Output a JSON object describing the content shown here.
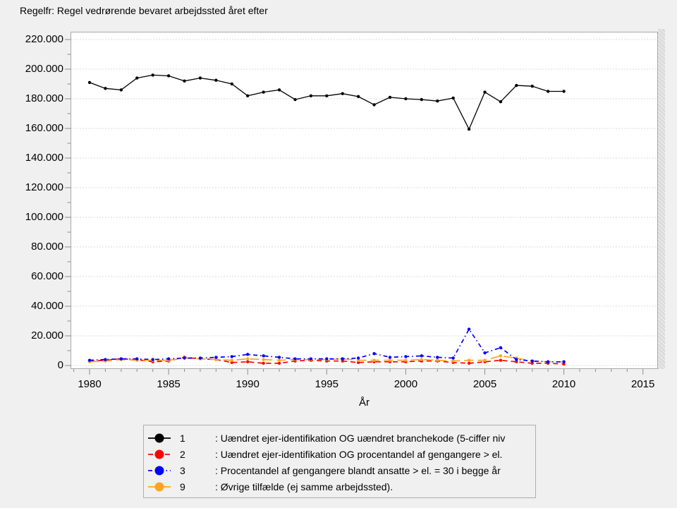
{
  "title": "Regelfr: Regel vedrørende bevaret arbejdssted året efter",
  "chart_data": {
    "type": "line",
    "title": "Regelfr: Regel vedrørende bevaret arbejdssted året efter",
    "xlabel": "År",
    "ylabel": "",
    "grid": "horizontal dotted gridlines at major y ticks",
    "legend_position": "bottom",
    "x": [
      1980,
      1981,
      1982,
      1983,
      1984,
      1985,
      1986,
      1987,
      1988,
      1989,
      1990,
      1991,
      1992,
      1993,
      1994,
      1995,
      1996,
      1997,
      1998,
      1999,
      2000,
      2001,
      2002,
      2003,
      2004,
      2005,
      2006,
      2007,
      2008,
      2009,
      2010
    ],
    "x_axis": {
      "range": [
        1978.8,
        2016
      ],
      "major_ticks": [
        1980,
        1985,
        1990,
        1995,
        2000,
        2005,
        2010,
        2015
      ],
      "tick_labels": [
        "1980",
        "1985",
        "1990",
        "1995",
        "2000",
        "2005",
        "2010",
        "2015"
      ],
      "minor_step": 1
    },
    "y_axis": {
      "range": [
        0,
        220000
      ],
      "major_ticks": [
        0,
        20000,
        40000,
        60000,
        80000,
        100000,
        120000,
        140000,
        160000,
        180000,
        200000,
        220000
      ],
      "tick_labels": [
        "0",
        "20.000",
        "40.000",
        "60.000",
        "80.000",
        "100.000",
        "120.000",
        "140.000",
        "160.000",
        "180.000",
        "200.000",
        "220.000"
      ],
      "minor_step": 10000
    },
    "series": [
      {
        "name": "1",
        "label": ": Uændret ejer-identifikation OG uændret branchekode (5-ciffer niv",
        "color": "#000000",
        "dash": "solid",
        "values": [
          191000,
          187000,
          186000,
          194000,
          196000,
          195500,
          192000,
          194000,
          192500,
          190000,
          182000,
          184500,
          186000,
          179500,
          182000,
          182000,
          183500,
          181500,
          176000,
          181000,
          180000,
          179500,
          178500,
          180500,
          159500,
          184500,
          178000,
          189000,
          188500,
          185000,
          185000
        ]
      },
      {
        "name": "2",
        "label": ": Uændret ejer-identifikation OG procentandel af gengangere > el.",
        "color": "#ff0000",
        "dash": "dash",
        "values": [
          3000,
          3500,
          4500,
          4000,
          2500,
          3000,
          5500,
          4500,
          4000,
          2000,
          2500,
          1500,
          1500,
          3000,
          3500,
          3000,
          3000,
          2000,
          2500,
          2500,
          2500,
          3000,
          3000,
          2000,
          1500,
          2500,
          3500,
          2500,
          1500,
          1500,
          1000
        ]
      },
      {
        "name": "3",
        "label": ": Procentandel af gengangere blandt ansatte > el. = 30 i begge år",
        "color": "#0000ff",
        "dash": "dash-dot",
        "values": [
          3500,
          4000,
          4500,
          4500,
          4000,
          4500,
          5000,
          5000,
          5500,
          6000,
          7500,
          6500,
          5500,
          4500,
          4500,
          4500,
          4500,
          5000,
          8000,
          5500,
          6000,
          6500,
          5500,
          5000,
          24500,
          8500,
          12000,
          4000,
          3000,
          2500,
          2500
        ]
      },
      {
        "name": "9",
        "label": ": Øvrige tilfælde (ej samme arbejdssted).",
        "color": "#ffa520",
        "dash": "long-dash",
        "values": [
          2500,
          3000,
          4000,
          3500,
          3500,
          3500,
          5000,
          4500,
          4000,
          3500,
          4500,
          4000,
          3500,
          4000,
          4000,
          4000,
          4500,
          3500,
          3500,
          3500,
          3500,
          4000,
          3500,
          3000,
          3500,
          3500,
          6500,
          5000,
          3000,
          2500,
          2500
        ]
      }
    ],
    "colors": {
      "background": "#f0f0f0",
      "plot_background": "#ffffff",
      "gridline": "#d9d9d9",
      "tick": "#8c8c8c",
      "frame": "#a8a8a8"
    }
  }
}
